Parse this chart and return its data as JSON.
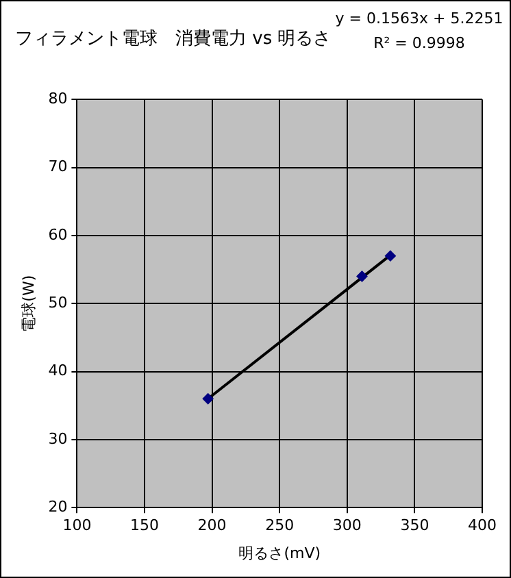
{
  "chart_data": {
    "type": "scatter",
    "title": "フィラメント電球　消費電力 vs 明るさ",
    "xlabel": "明るさ(mV)",
    "ylabel": "電球(W)",
    "annotations": [
      "y = 0.1563x + 5.2251",
      "R² = 0.9998"
    ],
    "x": [
      197,
      311,
      332
    ],
    "series": [
      {
        "color": "#000080",
        "values": [
          36,
          54,
          57
        ]
      },
      {
        "type": "line",
        "color": "#000000",
        "marker": "none",
        "x": [
          197,
          332
        ],
        "values": [
          36.0,
          57.1
        ]
      }
    ],
    "xlim": [
      100,
      400
    ],
    "xticks": [
      100,
      150,
      200,
      250,
      300,
      350,
      400
    ],
    "ylim": [
      20,
      80
    ],
    "yticks": [
      20,
      30,
      40,
      50,
      60,
      70,
      80
    ],
    "grid": true,
    "legend": false,
    "marker": "diamond"
  }
}
